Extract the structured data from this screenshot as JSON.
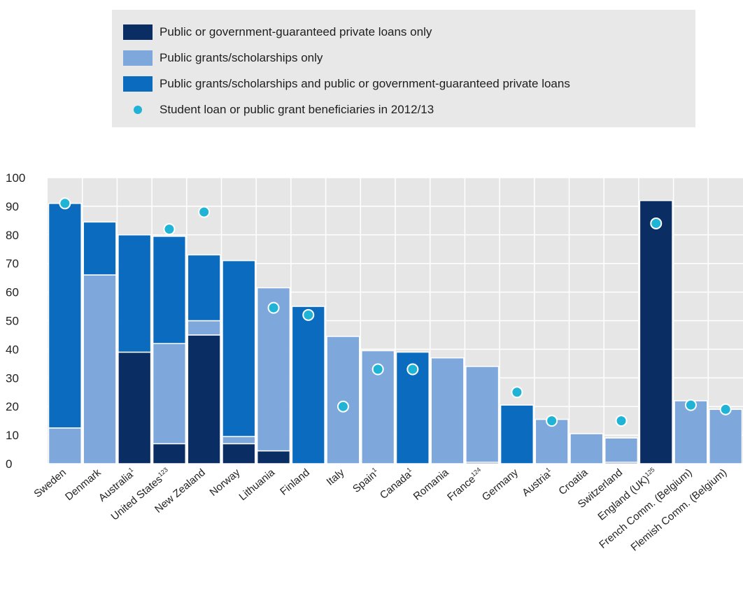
{
  "legend": {
    "items": [
      {
        "key": "loans",
        "label": "Public or government-guaranteed private loans only"
      },
      {
        "key": "grants",
        "label": "Public grants/scholarships only"
      },
      {
        "key": "both",
        "label": "Public grants/scholarships and public or government-guaranteed private loans"
      },
      {
        "key": "beneficiaries",
        "label": "Student loan or public grant beneficiaries in 2012/13"
      }
    ]
  },
  "colors": {
    "loans": "#0a2d64",
    "grants": "#7ea8dc",
    "both": "#0a6bbf",
    "beneficiaries": "#1fb3d6",
    "plot_bg": "#e6e6e6",
    "grid": "#ffffff"
  },
  "chart_data": {
    "type": "bar",
    "stacked": true,
    "ylim": [
      0,
      100
    ],
    "yticks": [
      0,
      10,
      20,
      30,
      40,
      50,
      60,
      70,
      80,
      90,
      100
    ],
    "grid": true,
    "legend_position": "top",
    "categories": [
      {
        "name": "Sweden",
        "sup": ""
      },
      {
        "name": "Denmark",
        "sup": ""
      },
      {
        "name": "Australia",
        "sup": "1"
      },
      {
        "name": "United States",
        "sup": "123"
      },
      {
        "name": "New Zealand",
        "sup": ""
      },
      {
        "name": "Norway",
        "sup": ""
      },
      {
        "name": "Lithuania",
        "sup": ""
      },
      {
        "name": "Finland",
        "sup": ""
      },
      {
        "name": "Italy",
        "sup": ""
      },
      {
        "name": "Spain",
        "sup": "1"
      },
      {
        "name": "Canada",
        "sup": "1"
      },
      {
        "name": "Romania",
        "sup": ""
      },
      {
        "name": "France",
        "sup": "124"
      },
      {
        "name": "Germany",
        "sup": ""
      },
      {
        "name": "Austria",
        "sup": "1"
      },
      {
        "name": "Croatia",
        "sup": ""
      },
      {
        "name": "Switzerland",
        "sup": ""
      },
      {
        "name": "England (UK)",
        "sup": "125"
      },
      {
        "name": "French Comm. (Belgium)",
        "sup": ""
      },
      {
        "name": "Flemish Comm. (Belgium)",
        "sup": ""
      }
    ],
    "series": [
      {
        "name": "Public or government-guaranteed private loans only",
        "key": "loans",
        "values": [
          0,
          0,
          39,
          7,
          45,
          7,
          4.5,
          0,
          0,
          0,
          0,
          0,
          0.5,
          0,
          0,
          0,
          0.5,
          92,
          0,
          0
        ]
      },
      {
        "name": "Public grants/scholarships only",
        "key": "grants",
        "values": [
          12.5,
          66,
          0,
          35,
          5,
          2.5,
          57,
          0,
          44.5,
          39.5,
          0,
          37,
          33.5,
          0,
          15.5,
          10.5,
          8.5,
          0,
          22,
          19
        ]
      },
      {
        "name": "Public grants/scholarships and public or government-guaranteed private loans",
        "key": "both",
        "values": [
          78.5,
          18.5,
          41,
          37.5,
          23,
          61.5,
          0,
          55,
          0,
          0,
          39,
          0,
          0,
          20.5,
          0,
          0,
          0,
          0,
          0,
          0
        ]
      }
    ],
    "markers": {
      "name": "Student loan or public grant beneficiaries in 2012/13",
      "key": "beneficiaries",
      "values": [
        91,
        null,
        null,
        82,
        88,
        null,
        54.5,
        52,
        20,
        33,
        33,
        null,
        null,
        25,
        15,
        null,
        15,
        84,
        20.5,
        19
      ]
    }
  }
}
